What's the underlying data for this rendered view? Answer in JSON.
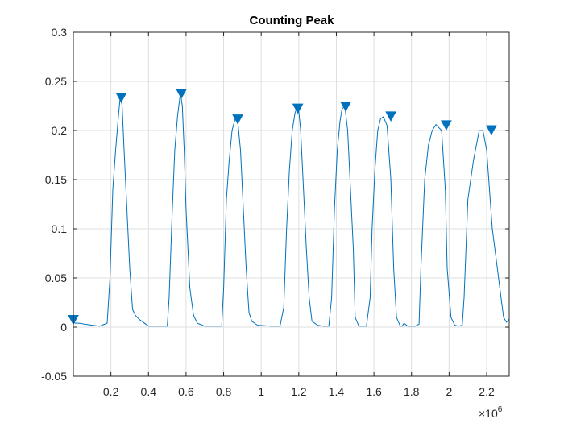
{
  "chart_data": {
    "type": "line",
    "title": "Counting Peak",
    "xlabel": "",
    "ylabel": "",
    "x_exponent_label": "×10",
    "x_exponent_power": "6",
    "xlim": [
      0,
      2.32
    ],
    "ylim": [
      -0.05,
      0.3
    ],
    "x_scale": 1000000,
    "x_ticks": [
      0.2,
      0.4,
      0.6,
      0.8,
      1.0,
      1.2,
      1.4,
      1.6,
      1.8,
      2.0,
      2.2
    ],
    "x_tick_labels": [
      "0.2",
      "0.4",
      "0.6",
      "0.8",
      "1",
      "1.2",
      "1.4",
      "1.6",
      "1.8",
      "2",
      "2.2"
    ],
    "y_ticks": [
      -0.05,
      0,
      0.05,
      0.1,
      0.15,
      0.2,
      0.25,
      0.3
    ],
    "y_tick_labels": [
      "-0.05",
      "0",
      "0.05",
      "0.1",
      "0.15",
      "0.2",
      "0.25",
      "0.3"
    ],
    "grid": true,
    "line_color": "#0072BD",
    "marker_color": "#0072BD",
    "series": [
      {
        "kind": "signal",
        "x": [
          0.0,
          0.01,
          0.03,
          0.06,
          0.1,
          0.14,
          0.18,
          0.195,
          0.21,
          0.225,
          0.24,
          0.25,
          0.26,
          0.27,
          0.285,
          0.3,
          0.315,
          0.33,
          0.35,
          0.4,
          0.45,
          0.48,
          0.5,
          0.51,
          0.525,
          0.54,
          0.555,
          0.57,
          0.58,
          0.59,
          0.6,
          0.62,
          0.64,
          0.66,
          0.7,
          0.75,
          0.79,
          0.8,
          0.815,
          0.83,
          0.845,
          0.86,
          0.875,
          0.89,
          0.905,
          0.92,
          0.935,
          0.95,
          0.98,
          1.05,
          1.1,
          1.12,
          1.135,
          1.15,
          1.165,
          1.18,
          1.19,
          1.2,
          1.21,
          1.225,
          1.24,
          1.255,
          1.27,
          1.3,
          1.33,
          1.36,
          1.375,
          1.39,
          1.405,
          1.42,
          1.43,
          1.445,
          1.46,
          1.475,
          1.49,
          1.5,
          1.52,
          1.56,
          1.58,
          1.59,
          1.605,
          1.62,
          1.635,
          1.65,
          1.67,
          1.69,
          1.705,
          1.72,
          1.74,
          1.75,
          1.76,
          1.78,
          1.82,
          1.84,
          1.85,
          1.87,
          1.89,
          1.91,
          1.93,
          1.96,
          1.98,
          1.99,
          2.01,
          2.03,
          2.05,
          2.07,
          2.08,
          2.1,
          2.13,
          2.15,
          2.16,
          2.18,
          2.2,
          2.215,
          2.23,
          2.25,
          2.27,
          2.29,
          2.305,
          2.32
        ],
        "y": [
          0.006,
          0.004,
          0.004,
          0.003,
          0.002,
          0.001,
          0.004,
          0.05,
          0.14,
          0.18,
          0.215,
          0.235,
          0.225,
          0.18,
          0.12,
          0.06,
          0.018,
          0.012,
          0.008,
          0.001,
          0.001,
          0.001,
          0.001,
          0.03,
          0.11,
          0.18,
          0.215,
          0.238,
          0.225,
          0.18,
          0.12,
          0.04,
          0.012,
          0.004,
          0.001,
          0.001,
          0.001,
          0.04,
          0.13,
          0.17,
          0.2,
          0.211,
          0.21,
          0.18,
          0.12,
          0.06,
          0.015,
          0.006,
          0.002,
          0.001,
          0.001,
          0.02,
          0.1,
          0.16,
          0.2,
          0.218,
          0.223,
          0.22,
          0.2,
          0.14,
          0.08,
          0.03,
          0.006,
          0.002,
          0.001,
          0.001,
          0.03,
          0.12,
          0.18,
          0.21,
          0.222,
          0.225,
          0.2,
          0.14,
          0.08,
          0.01,
          0.001,
          0.001,
          0.03,
          0.1,
          0.16,
          0.2,
          0.212,
          0.214,
          0.205,
          0.15,
          0.06,
          0.01,
          0.001,
          0.001,
          0.004,
          0.001,
          0.001,
          0.003,
          0.06,
          0.15,
          0.185,
          0.2,
          0.206,
          0.2,
          0.14,
          0.06,
          0.01,
          0.002,
          0.001,
          0.002,
          0.03,
          0.13,
          0.17,
          0.19,
          0.2,
          0.2,
          0.18,
          0.14,
          0.1,
          0.07,
          0.04,
          0.01,
          0.005,
          0.008
        ]
      }
    ],
    "peaks": {
      "x": [
        0.0,
        0.255,
        0.575,
        0.875,
        1.195,
        1.45,
        1.69,
        1.985,
        2.225
      ],
      "y": [
        0.007,
        0.233,
        0.237,
        0.211,
        0.222,
        0.224,
        0.214,
        0.205,
        0.2
      ]
    }
  }
}
